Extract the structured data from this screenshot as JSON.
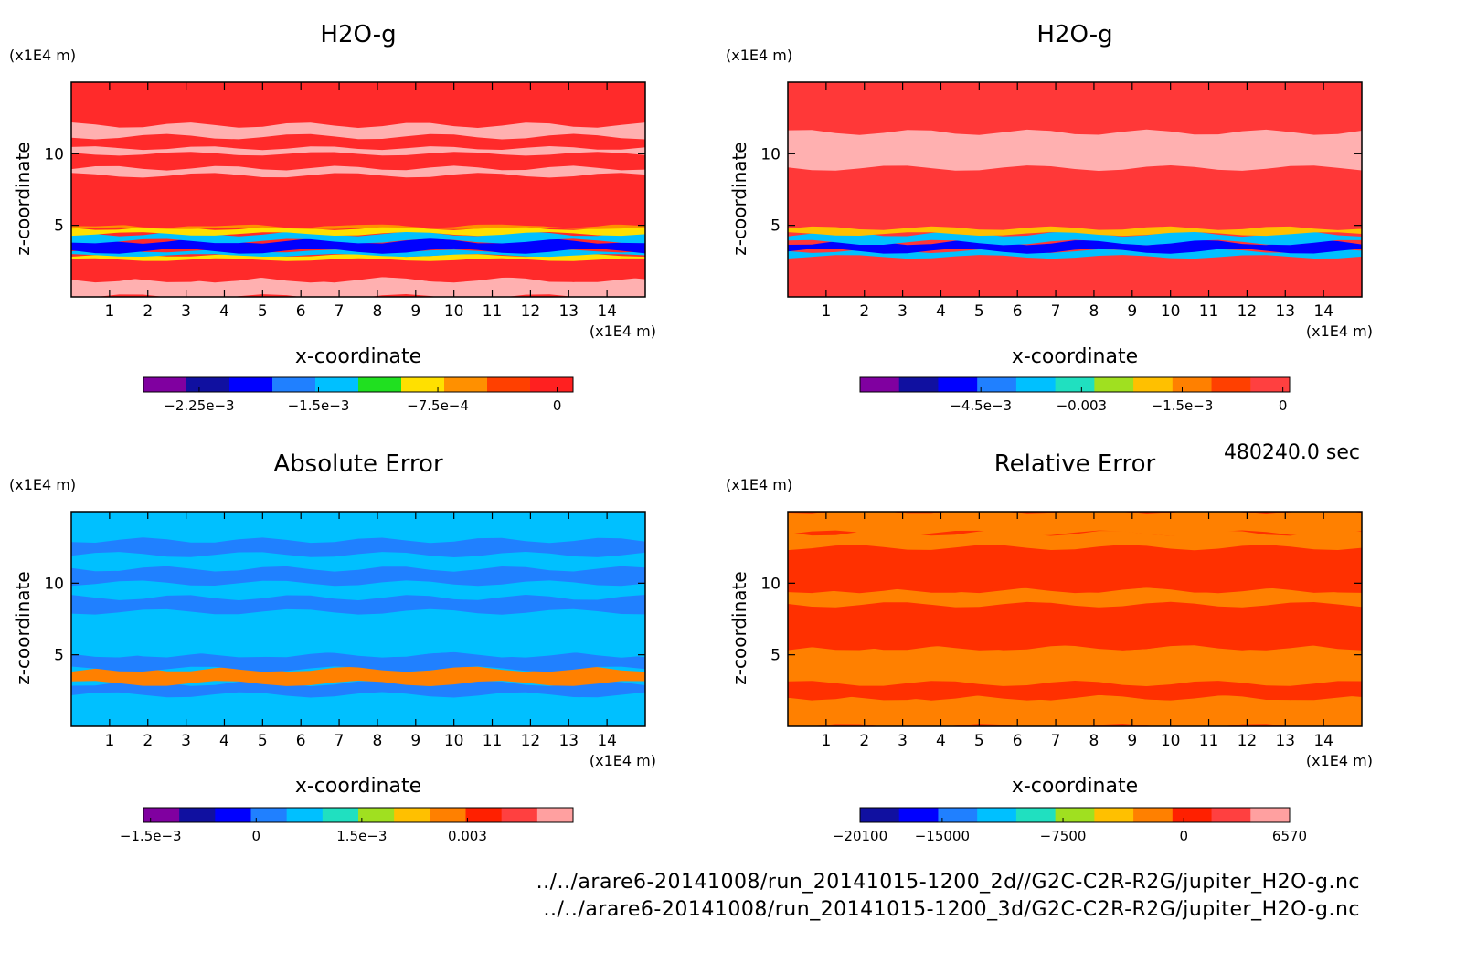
{
  "chart_data": [
    {
      "type": "heatmap",
      "title": "H2O-g",
      "xlabel": "x-coordinate",
      "ylabel": "z-coordinate",
      "x_unit": "(x1E4 m)",
      "y_unit": "(x1E4 m)",
      "xlim": [
        0,
        15
      ],
      "ylim": [
        0,
        15
      ],
      "xticks": [
        1,
        2,
        3,
        4,
        5,
        6,
        7,
        8,
        9,
        10,
        11,
        12,
        13,
        14
      ],
      "yticks": [
        5,
        10
      ],
      "colorbar": {
        "range": [
          -0.0026,
          0.0001
        ],
        "ticks": [
          -0.00225,
          -0.0015,
          -0.00075,
          0
        ],
        "tick_labels": [
          "−2.25e−3",
          "−1.5e−3",
          "−7.5e−4",
          "0"
        ],
        "colors": [
          "#8000a0",
          "#1010a0",
          "#0000ff",
          "#2080ff",
          "#00c0ff",
          "#20e020",
          "#ffe000",
          "#ff9000",
          "#ff4000",
          "#ff2020"
        ]
      },
      "bands": [
        {
          "z0": 0,
          "z1": 1.2,
          "level": "#ffb0b0"
        },
        {
          "z0": 1.2,
          "z1": 2.6,
          "level": "#ff2a2a"
        },
        {
          "z0": 2.6,
          "z1": 2.9,
          "level": "#ffe000"
        },
        {
          "z0": 2.9,
          "z1": 3.2,
          "level": "#00c0ff"
        },
        {
          "z0": 3.2,
          "z1": 3.9,
          "level": "#0000ff"
        },
        {
          "z0": 3.9,
          "z1": 4.4,
          "level": "#00c0ff"
        },
        {
          "z0": 4.4,
          "z1": 4.8,
          "level": "#ffe000"
        },
        {
          "z0": 4.8,
          "z1": 5.0,
          "level": "#ff9000"
        },
        {
          "z0": 5.0,
          "z1": 8.5,
          "level": "#ff2a2a"
        },
        {
          "z0": 8.5,
          "z1": 9.0,
          "level": "#ffb0b0"
        },
        {
          "z0": 10.0,
          "z1": 10.4,
          "level": "#ffb0b0"
        },
        {
          "z0": 11.2,
          "z1": 12.0,
          "level": "#ffb0b0"
        }
      ]
    },
    {
      "type": "heatmap",
      "title": "H2O-g",
      "xlabel": "x-coordinate",
      "ylabel": "z-coordinate",
      "x_unit": "(x1E4 m)",
      "y_unit": "(x1E4 m)",
      "xlim": [
        0,
        15
      ],
      "ylim": [
        0,
        15
      ],
      "xticks": [
        1,
        2,
        3,
        4,
        5,
        6,
        7,
        8,
        9,
        10,
        11,
        12,
        13,
        14
      ],
      "yticks": [
        5,
        10
      ],
      "colorbar": {
        "range": [
          -0.0063,
          0.0001
        ],
        "ticks": [
          -0.0045,
          -0.003,
          -0.0015,
          0
        ],
        "tick_labels": [
          "−4.5e−3",
          "−0.003",
          "−1.5e−3",
          "0"
        ],
        "colors": [
          "#8000a0",
          "#1010a0",
          "#0000ff",
          "#2080ff",
          "#00c0ff",
          "#20e0c0",
          "#a0e020",
          "#ffc000",
          "#ff8000",
          "#ff4000",
          "#ff4040"
        ]
      },
      "bands": [
        {
          "z0": 2.8,
          "z1": 3.2,
          "level": "#00c0ff"
        },
        {
          "z0": 3.2,
          "z1": 3.8,
          "level": "#0000ff"
        },
        {
          "z0": 3.8,
          "z1": 4.4,
          "level": "#00c0ff"
        },
        {
          "z0": 4.4,
          "z1": 4.8,
          "level": "#ffc000"
        },
        {
          "z0": 9.0,
          "z1": 11.5,
          "level": "#ffb0b0"
        }
      ]
    },
    {
      "type": "heatmap",
      "title": "Absolute Error",
      "xlabel": "x-coordinate",
      "ylabel": "z-coordinate",
      "x_unit": "(x1E4 m)",
      "y_unit": "(x1E4 m)",
      "xlim": [
        0,
        15
      ],
      "ylim": [
        0,
        15
      ],
      "xticks": [
        1,
        2,
        3,
        4,
        5,
        6,
        7,
        8,
        9,
        10,
        11,
        12,
        13,
        14
      ],
      "yticks": [
        5,
        10
      ],
      "colorbar": {
        "range": [
          -0.0016,
          0.0045
        ],
        "ticks": [
          -0.0015,
          0,
          0.0015,
          0.003
        ],
        "tick_labels": [
          "−1.5e−3",
          "0",
          "1.5e−3",
          "0.003"
        ],
        "colors": [
          "#8000a0",
          "#1010a0",
          "#0000ff",
          "#2080ff",
          "#00c0ff",
          "#20e0c0",
          "#a0e020",
          "#ffc000",
          "#ff8000",
          "#ff2000",
          "#ff4040",
          "#ffa0a0"
        ]
      },
      "bands": [
        {
          "z0": 0,
          "z1": 2.2,
          "level": "#00c0ff"
        },
        {
          "z0": 2.2,
          "z1": 3.0,
          "level": "#2080ff"
        },
        {
          "z0": 3.0,
          "z1": 4.0,
          "level": "#ff8000"
        },
        {
          "z0": 4.0,
          "z1": 5.0,
          "level": "#2080ff"
        },
        {
          "z0": 5.0,
          "z1": 8.0,
          "level": "#00c0ff"
        },
        {
          "z0": 8.0,
          "z1": 9.0,
          "level": "#2080ff"
        },
        {
          "z0": 10.0,
          "z1": 11.0,
          "level": "#2080ff"
        },
        {
          "z0": 12.0,
          "z1": 13.0,
          "level": "#2080ff"
        }
      ]
    },
    {
      "type": "heatmap",
      "title": "Relative Error",
      "xlabel": "x-coordinate",
      "ylabel": "z-coordinate",
      "x_unit": "(x1E4 m)",
      "y_unit": "(x1E4 m)",
      "xlim": [
        0,
        15
      ],
      "ylim": [
        0,
        15
      ],
      "xticks": [
        1,
        2,
        3,
        4,
        5,
        6,
        7,
        8,
        9,
        10,
        11,
        12,
        13,
        14
      ],
      "yticks": [
        5,
        10
      ],
      "colorbar": {
        "range": [
          -20100,
          6570
        ],
        "ticks": [
          -20100,
          -15000,
          -7500,
          0,
          6570
        ],
        "tick_labels": [
          "−20100",
          "−15000",
          "−7500",
          "0",
          "6570"
        ],
        "colors": [
          "#1010a0",
          "#0000ff",
          "#2080ff",
          "#00c0ff",
          "#20e0c0",
          "#a0e020",
          "#ffc000",
          "#ff8000",
          "#ff2000",
          "#ff4040",
          "#ffa0a0"
        ]
      },
      "bands": [
        {
          "z0": 0,
          "z1": 2.0,
          "level": "#ff8000"
        },
        {
          "z0": 2.0,
          "z1": 3.0,
          "level": "#ff3000"
        },
        {
          "z0": 3.0,
          "z1": 5.5,
          "level": "#ff8000"
        },
        {
          "z0": 5.5,
          "z1": 8.5,
          "level": "#ff3000"
        },
        {
          "z0": 8.5,
          "z1": 9.5,
          "level": "#ff8000"
        },
        {
          "z0": 9.5,
          "z1": 12.5,
          "level": "#ff3000"
        },
        {
          "z0": 12.5,
          "z1": 13.5,
          "level": "#ff8000"
        },
        {
          "z0": 13.5,
          "z1": 15,
          "level": "#ff8000"
        }
      ]
    }
  ],
  "time_label": "480240.0 sec",
  "file_paths": [
    "../../arare6-20141008/run_20141015-1200_2d//G2C-C2R-R2G/jupiter_H2O-g.nc",
    "../../arare6-20141008/run_20141015-1200_3d/G2C-C2R-R2G/jupiter_H2O-g.nc"
  ]
}
